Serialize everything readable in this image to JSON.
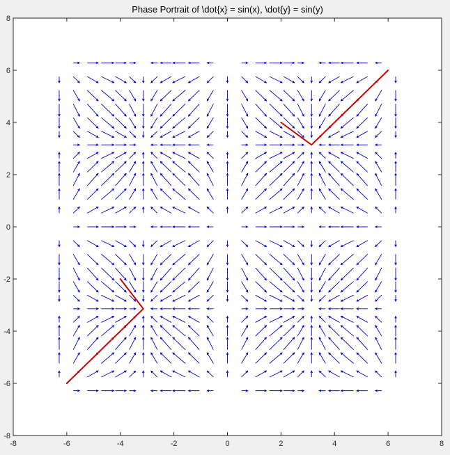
{
  "chart_data": {
    "type": "quiver",
    "title": "Phase Portrait of \\dot{x} = sin(x), \\dot{y} = sin(y)",
    "xlabel": "",
    "ylabel": "",
    "xlim": [
      -8,
      8
    ],
    "ylim": [
      -8,
      8
    ],
    "xticks": [
      -8,
      -6,
      -4,
      -2,
      0,
      2,
      4,
      6,
      8
    ],
    "yticks": [
      -8,
      -6,
      -4,
      -2,
      0,
      2,
      4,
      6,
      8
    ],
    "grid": false,
    "field": {
      "dx": "sin(x)",
      "dy": "sin(y)",
      "range": [
        -6.2832,
        6.2832
      ],
      "count": 25,
      "color": "#0000cc"
    },
    "trajectories": [
      {
        "color": "#cc0000",
        "x": [
          -6,
          -3.14159,
          -4
        ],
        "y": [
          -6,
          -3.14159,
          -2
        ]
      },
      {
        "color": "#cc0000",
        "x": [
          6,
          3.14159,
          2
        ],
        "y": [
          6,
          3.14159,
          4
        ]
      }
    ]
  }
}
